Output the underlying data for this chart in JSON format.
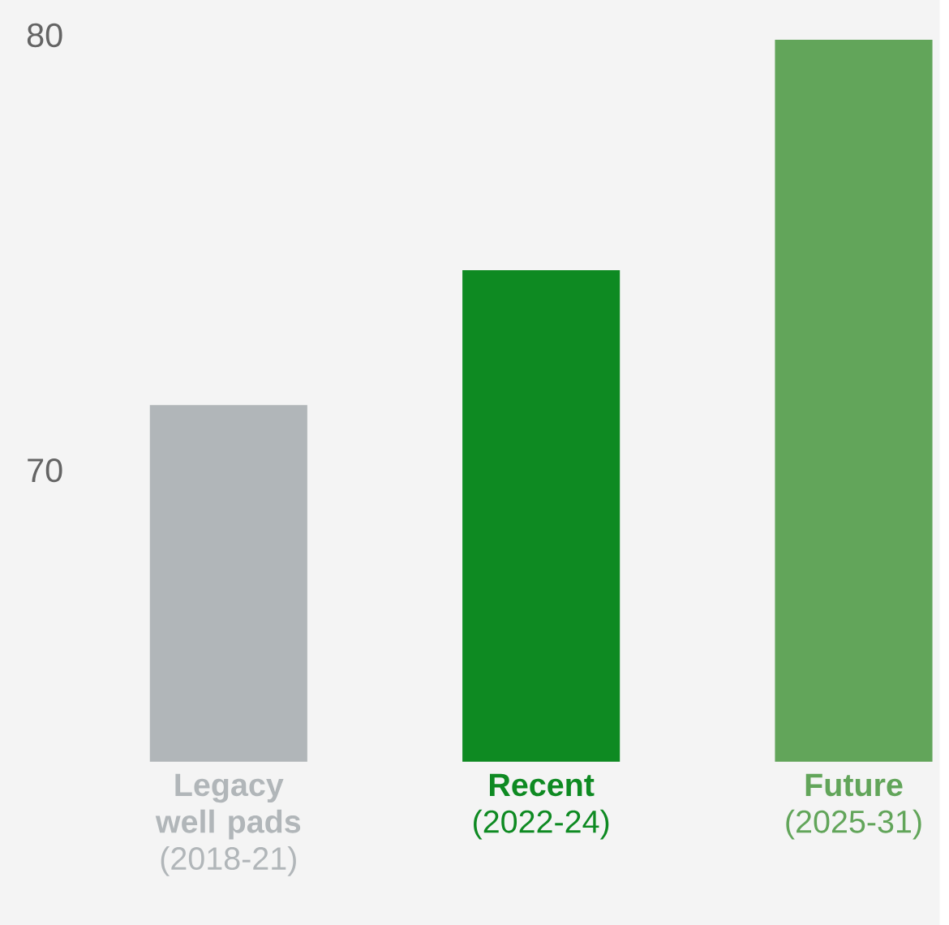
{
  "chart_data": {
    "type": "bar",
    "categories": [
      "**Legacy well pads** (2018-21)",
      "**Recent** (2022-24)",
      "**Future** (2025-31)"
    ],
    "values": [
      71.5,
      74.6,
      79.9
    ],
    "colors": [
      "#b1b6b9",
      "#0e8a22",
      "#62a55a"
    ],
    "ylim": [
      63.3,
      80
    ],
    "yticks": [
      70,
      80
    ]
  }
}
